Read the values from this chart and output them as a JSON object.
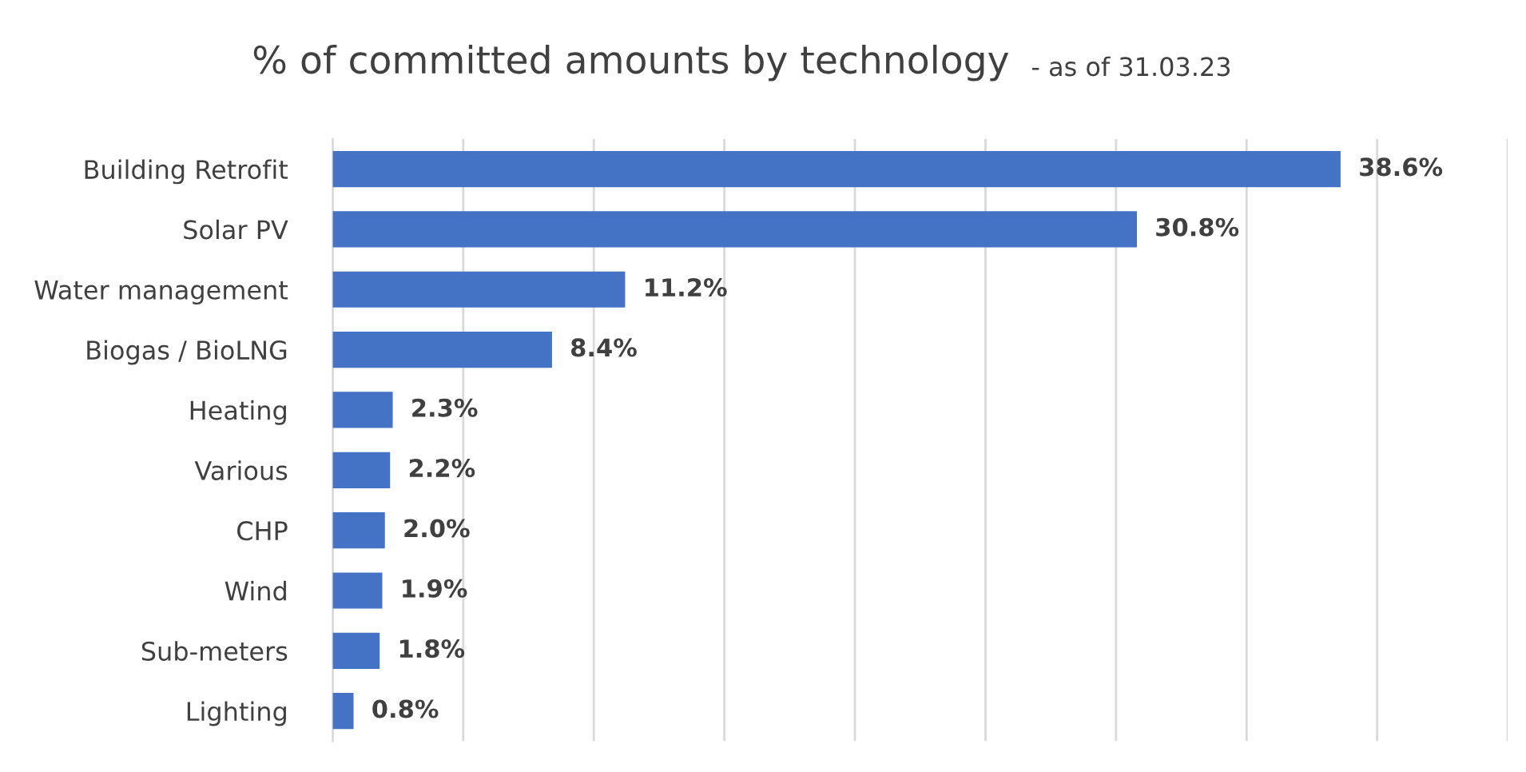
{
  "chart_data": {
    "type": "bar",
    "orientation": "horizontal",
    "title": "% of committed amounts by technology",
    "subtitle": "- as of 31.03.23",
    "categories": [
      "Building Retrofit",
      "Solar PV",
      "Water management",
      "Biogas / BioLNG",
      "Heating",
      "Various",
      "CHP",
      "Wind",
      "Sub-meters",
      "Lighting"
    ],
    "values": [
      38.6,
      30.8,
      11.2,
      8.4,
      2.3,
      2.2,
      2.0,
      1.9,
      1.8,
      0.8
    ],
    "value_labels": [
      "38.6%",
      "30.8%",
      "11.2%",
      "8.4%",
      "2.3%",
      "2.2%",
      "2.0%",
      "1.9%",
      "1.8%",
      "0.8%"
    ],
    "color": "#4472c4",
    "xlim": [
      0,
      45
    ],
    "xticks": [
      {
        "value": 0,
        "label": null
      },
      {
        "value": 5,
        "label": null
      },
      {
        "value": 10,
        "label": null
      },
      {
        "value": 15,
        "label": null
      },
      {
        "value": 20,
        "label": null
      },
      {
        "value": 25,
        "label": null
      },
      {
        "value": 30,
        "label": null
      },
      {
        "value": 35,
        "label": null
      },
      {
        "value": 40,
        "label": null
      },
      {
        "value": 45,
        "label": null
      }
    ],
    "tick_labels": "y",
    "grid": "x",
    "legend": false
  }
}
